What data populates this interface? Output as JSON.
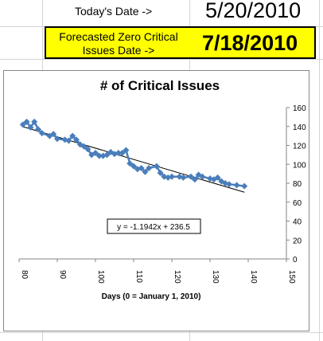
{
  "sheet": {
    "today_label": "Today's Date ->",
    "today_value": "5/20/2010",
    "forecast_label": "Forecasted Zero Critical Issues Date ->",
    "forecast_value": "7/18/2010"
  },
  "colors": {
    "series": "#4a7ebb",
    "trendline": "#000000",
    "highlight": "#ffff00"
  },
  "chart_data": {
    "type": "scatter",
    "title": "# of Critical Issues",
    "xlabel": "Days (0 = January  1, 2010)",
    "ylabel": "",
    "xlim": [
      80,
      150
    ],
    "ylim": [
      0,
      160
    ],
    "xticks": [
      80,
      90,
      100,
      110,
      120,
      130,
      140,
      150
    ],
    "yticks": [
      0,
      20,
      40,
      60,
      80,
      100,
      120,
      140,
      160
    ],
    "grid": false,
    "legend": "none",
    "trendline_label": "y = -1.1942x + 236.5",
    "trendline": {
      "slope": -1.1942,
      "intercept": 236.5,
      "x_range": [
        81,
        139
      ]
    },
    "series": [
      {
        "x": [
          81,
          82,
          83,
          84,
          85,
          86,
          88,
          89,
          90,
          92,
          93,
          94,
          95,
          96,
          97,
          98,
          99,
          100,
          101,
          102,
          103,
          104,
          105,
          106,
          107,
          108,
          109,
          110,
          111,
          112,
          113,
          114,
          116,
          117,
          118,
          119,
          120,
          122,
          123,
          125,
          126,
          127,
          128,
          130,
          131,
          132,
          133,
          134,
          135,
          137,
          139
        ],
        "y": [
          142,
          145,
          139,
          145,
          137,
          133,
          130,
          132,
          127,
          126,
          125,
          130,
          126,
          121,
          119,
          116,
          110,
          112,
          109,
          109,
          110,
          113,
          111,
          112,
          112,
          115,
          101,
          98,
          95,
          96,
          92,
          96,
          98,
          91,
          87,
          86,
          87,
          87,
          86,
          87,
          84,
          89,
          87,
          85,
          84,
          86,
          82,
          80,
          79,
          78,
          77
        ]
      }
    ]
  }
}
